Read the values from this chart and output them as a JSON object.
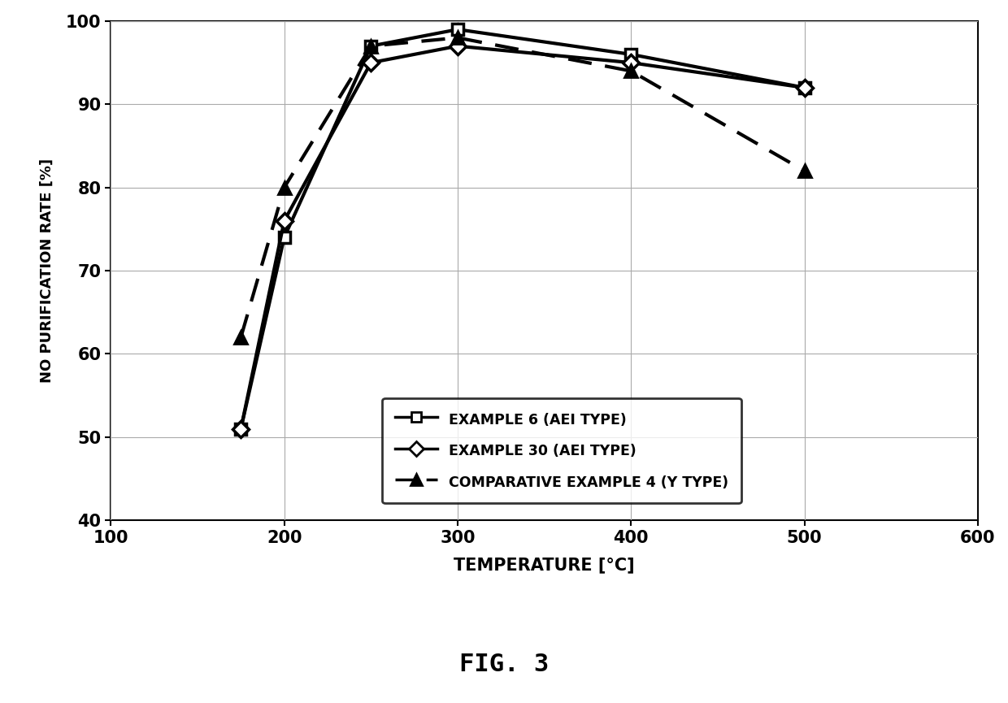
{
  "example6_x": [
    175,
    200,
    250,
    300,
    400,
    500
  ],
  "example6_y": [
    51,
    74,
    97,
    99,
    96,
    92
  ],
  "example30_x": [
    175,
    200,
    250,
    300,
    400,
    500
  ],
  "example30_y": [
    51,
    76,
    95,
    97,
    95,
    92
  ],
  "comp4_x": [
    175,
    200,
    250,
    300,
    400,
    500
  ],
  "comp4_y": [
    62,
    80,
    97,
    98,
    94,
    82
  ],
  "xlabel": "TEMPERATURE [°C]",
  "ylabel": "NO PURIFICATION RATE [%]",
  "fig_label": "FIG. 3",
  "xlim": [
    100,
    600
  ],
  "ylim": [
    40,
    100
  ],
  "xticks": [
    100,
    200,
    300,
    400,
    500,
    600
  ],
  "yticks": [
    40,
    50,
    60,
    70,
    80,
    90,
    100
  ],
  "legend_labels": [
    "EXAMPLE 6 (AEI TYPE)",
    "EXAMPLE 30 (AEI TYPE)",
    "COMPARATIVE EXAMPLE 4 (Y TYPE)"
  ],
  "background_color": "#ffffff",
  "line_color": "#000000"
}
